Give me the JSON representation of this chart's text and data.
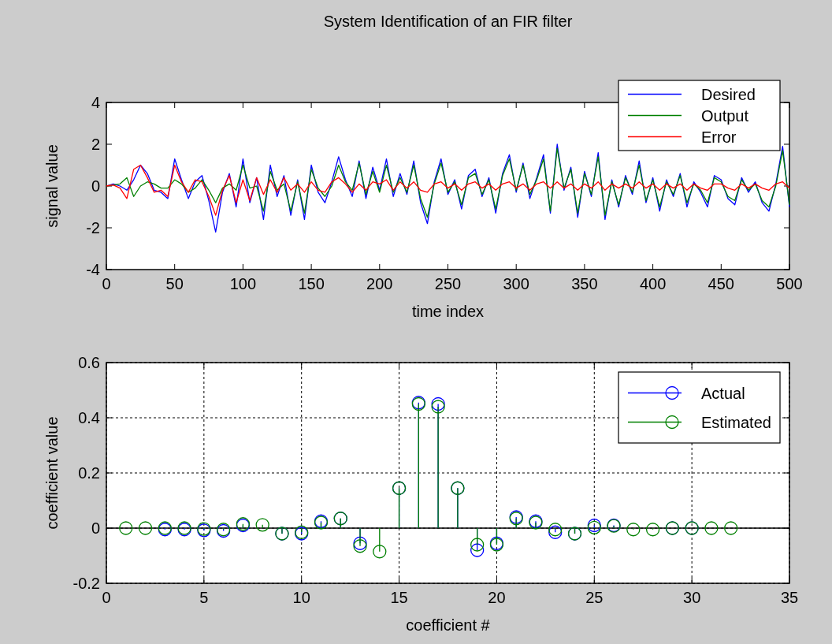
{
  "chart_data": [
    {
      "type": "line",
      "title": "System Identification of an FIR filter",
      "xlabel": "time index",
      "ylabel": "signal value",
      "xlim": [
        0,
        500
      ],
      "ylim": [
        -4,
        4
      ],
      "xticks": [
        0,
        50,
        100,
        150,
        200,
        250,
        300,
        350,
        400,
        450,
        500
      ],
      "yticks": [
        -4,
        -2,
        0,
        2,
        4
      ],
      "legend": "top right",
      "grid": false,
      "x": [
        0,
        5,
        10,
        15,
        20,
        25,
        30,
        35,
        40,
        45,
        50,
        55,
        60,
        65,
        70,
        75,
        80,
        85,
        90,
        95,
        100,
        105,
        110,
        115,
        120,
        125,
        130,
        135,
        140,
        145,
        150,
        155,
        160,
        165,
        170,
        175,
        180,
        185,
        190,
        195,
        200,
        205,
        210,
        215,
        220,
        225,
        230,
        235,
        240,
        245,
        250,
        255,
        260,
        265,
        270,
        275,
        280,
        285,
        290,
        295,
        300,
        305,
        310,
        315,
        320,
        325,
        330,
        335,
        340,
        345,
        350,
        355,
        360,
        365,
        370,
        375,
        380,
        385,
        390,
        395,
        400,
        405,
        410,
        415,
        420,
        425,
        430,
        435,
        440,
        445,
        450,
        455,
        460,
        465,
        470,
        475,
        480,
        485,
        490,
        495,
        500
      ],
      "series": [
        {
          "name": "Desired",
          "color": "#0000ff",
          "values": [
            0,
            0.1,
            0,
            -0.2,
            0.3,
            1.0,
            0.6,
            -0.2,
            -0.3,
            -0.6,
            1.3,
            0.3,
            -0.6,
            0.2,
            0.5,
            -0.7,
            -2.2,
            -0.3,
            0.6,
            -1.0,
            1.3,
            -0.8,
            0.4,
            -1.6,
            1.0,
            -0.5,
            0.5,
            -1.4,
            0.3,
            -1.6,
            1.0,
            -0.3,
            -0.8,
            0.2,
            1.4,
            0.3,
            -0.5,
            1.2,
            -0.6,
            0.9,
            -0.2,
            1.3,
            -0.5,
            0.6,
            -0.4,
            1.2,
            -0.8,
            -1.8,
            0.2,
            1.3,
            -0.4,
            0.3,
            -1.1,
            0.5,
            0.8,
            -0.5,
            0.4,
            -1.3,
            0.6,
            1.5,
            -0.3,
            1.1,
            -0.6,
            0.4,
            1.5,
            -1.3,
            2.0,
            -0.2,
            0.9,
            -1.5,
            0.7,
            -0.5,
            1.6,
            -1.6,
            0.3,
            -1.0,
            0.5,
            -0.4,
            1.2,
            -0.8,
            0.4,
            -1.2,
            0.3,
            -0.5,
            0.6,
            -1.0,
            0.2,
            -0.3,
            -1.0,
            0.5,
            0.3,
            -0.6,
            -0.9,
            0.4,
            -0.3,
            0.2,
            -0.8,
            -1.2,
            0.1,
            1.9,
            -1.0
          ]
        },
        {
          "name": "Output",
          "color": "#008000",
          "values": [
            0,
            0.05,
            0.1,
            0.4,
            -0.5,
            0,
            0.2,
            0.1,
            -0.1,
            -0.1,
            0.3,
            0.1,
            -0.3,
            -0.1,
            0.3,
            -0.2,
            -0.8,
            -0.1,
            0.1,
            -0.2,
            1.0,
            -0.1,
            0,
            -1.2,
            0.7,
            -0.2,
            0.1,
            -1.2,
            0.2,
            -1.3,
            0.8,
            -0.1,
            -0.5,
            0,
            1.0,
            0.2,
            -0.2,
            1.1,
            -0.4,
            0.7,
            -0.3,
            1.0,
            -0.3,
            0.4,
            -0.3,
            1.0,
            -0.6,
            -1.5,
            0.1,
            1.1,
            -0.3,
            0.2,
            -0.9,
            0.4,
            0.6,
            -0.4,
            0.3,
            -1.1,
            0.5,
            1.3,
            -0.2,
            1.0,
            -0.4,
            0.3,
            1.3,
            -1.2,
            1.8,
            -0.1,
            0.8,
            -1.3,
            0.6,
            -0.4,
            1.4,
            -1.4,
            0.2,
            -0.9,
            0.4,
            -0.3,
            1.0,
            -0.7,
            0.3,
            -1.0,
            0.2,
            -0.4,
            0.5,
            -0.8,
            0.1,
            -0.2,
            -0.8,
            0.4,
            0.2,
            -0.5,
            -0.7,
            0.3,
            -0.2,
            0.1,
            -0.7,
            -1.0,
            0,
            1.7,
            -0.9
          ]
        },
        {
          "name": "Error",
          "color": "#ff0000",
          "values": [
            0,
            0.05,
            -0.1,
            -0.6,
            0.8,
            1.0,
            0.4,
            -0.3,
            -0.2,
            -0.5,
            1.0,
            0.2,
            -0.3,
            0.3,
            0.2,
            -0.5,
            -1.4,
            -0.2,
            0.5,
            -0.8,
            0.3,
            -0.7,
            0.4,
            -0.4,
            0.3,
            -0.3,
            0.4,
            -0.2,
            0.1,
            -0.3,
            0.2,
            -0.2,
            -0.3,
            0.2,
            0.4,
            0.1,
            -0.3,
            0.1,
            -0.2,
            0.2,
            0.1,
            0.3,
            -0.2,
            0.2,
            -0.1,
            0.2,
            -0.2,
            -0.3,
            0.1,
            0.2,
            -0.1,
            0.1,
            -0.2,
            0.1,
            0.2,
            -0.1,
            0.1,
            -0.2,
            0.1,
            0.2,
            -0.1,
            0.1,
            -0.2,
            0.1,
            0.2,
            -0.1,
            0.2,
            -0.1,
            0.1,
            -0.2,
            0.1,
            -0.1,
            0.2,
            -0.2,
            0.1,
            -0.1,
            0.1,
            -0.1,
            0.2,
            -0.1,
            0.1,
            -0.2,
            0.1,
            -0.1,
            0.1,
            -0.2,
            0.1,
            -0.1,
            -0.2,
            0.1,
            0.1,
            -0.1,
            -0.2,
            0.1,
            -0.1,
            0.1,
            -0.1,
            -0.2,
            0.1,
            0.2,
            -0.1
          ]
        }
      ]
    },
    {
      "type": "lollipop",
      "xlabel": "coefficient #",
      "ylabel": "coefficient value",
      "xlim": [
        0,
        35
      ],
      "ylim": [
        -0.2,
        0.6
      ],
      "xticks": [
        0,
        5,
        10,
        15,
        20,
        25,
        30,
        35
      ],
      "yticks": [
        -0.2,
        0,
        0.2,
        0.4,
        0.6
      ],
      "legend": "top right",
      "grid": true,
      "marker": "circle",
      "series": [
        {
          "name": "Actual",
          "color": "#0000ff",
          "x": [
            3,
            4,
            5,
            6,
            7,
            9,
            10,
            11,
            12,
            13,
            15,
            16,
            17,
            18,
            19,
            20,
            21,
            22,
            23,
            24,
            25,
            26,
            29,
            30
          ],
          "values": [
            -0.005,
            -0.005,
            -0.008,
            -0.01,
            0.01,
            -0.02,
            -0.02,
            0.025,
            0.035,
            -0.055,
            0.145,
            0.455,
            0.45,
            0.145,
            -0.08,
            -0.055,
            0.04,
            0.025,
            -0.015,
            -0.02,
            0.01,
            0.01,
            0,
            0
          ]
        },
        {
          "name": "Estimated",
          "color": "#008000",
          "x": [
            1,
            2,
            3,
            4,
            5,
            6,
            7,
            8,
            9,
            10,
            11,
            12,
            13,
            14,
            15,
            16,
            17,
            18,
            19,
            20,
            21,
            22,
            23,
            24,
            25,
            26,
            27,
            28,
            29,
            30,
            31,
            32
          ],
          "values": [
            0,
            0,
            0,
            0,
            -0.003,
            -0.005,
            0.015,
            0.012,
            -0.02,
            -0.015,
            0.02,
            0.035,
            -0.065,
            -0.085,
            0.145,
            0.45,
            0.44,
            0.145,
            -0.06,
            -0.06,
            0.035,
            0.02,
            -0.005,
            -0.02,
            0.002,
            0.008,
            -0.005,
            -0.005,
            0,
            0,
            0,
            0
          ]
        }
      ]
    }
  ]
}
